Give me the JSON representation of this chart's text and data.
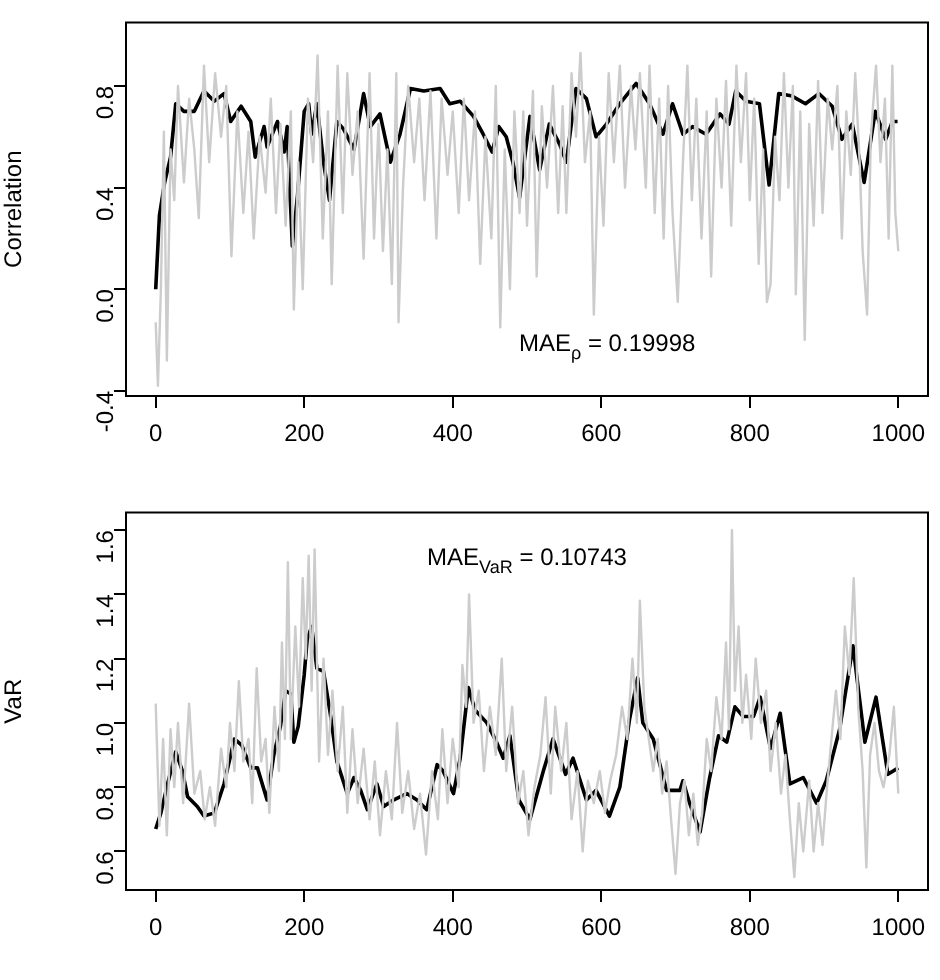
{
  "chart_data": [
    {
      "type": "line",
      "ylabel": "Correlation",
      "xlim": [
        -40,
        1040
      ],
      "ylim": [
        -0.42,
        1.05
      ],
      "xticks": [
        0,
        200,
        400,
        600,
        800,
        1000
      ],
      "yticks": [
        {
          "value": -0.4,
          "label": "-0.4"
        },
        {
          "value": 0,
          "label": "0.0"
        },
        0.4,
        0.8
      ],
      "grid": false,
      "legend": false,
      "marker": "none",
      "line_style": "solid",
      "annotations": [
        "MAE$_{ρ}$ = 0.19998"
      ],
      "series": [
        {
          "color": "#cccccc",
          "x": [
            0,
            3,
            7,
            11,
            15,
            20,
            25,
            30,
            38,
            45,
            52,
            58,
            65,
            72,
            80,
            88,
            95,
            102,
            110,
            118,
            125,
            132,
            140,
            148,
            155,
            162,
            168,
            175,
            182,
            186,
            192,
            198,
            205,
            212,
            218,
            225,
            232,
            237,
            245,
            252,
            258,
            265,
            272,
            280,
            288,
            294,
            300,
            306,
            312,
            318,
            324,
            327,
            333,
            340,
            348,
            355,
            362,
            370,
            378,
            385,
            393,
            400,
            408,
            415,
            422,
            430,
            437,
            444,
            452,
            458,
            464,
            470,
            477,
            483,
            490,
            495,
            500,
            508,
            513,
            520,
            527,
            535,
            542,
            548,
            553,
            560,
            566,
            572,
            578,
            585,
            590,
            597,
            603,
            610,
            617,
            625,
            632,
            640,
            646,
            652,
            660,
            665,
            672,
            678,
            684,
            690,
            696,
            703,
            710,
            716,
            722,
            728,
            735,
            742,
            748,
            755,
            762,
            768,
            775,
            782,
            788,
            795,
            800,
            806,
            812,
            818,
            823,
            828,
            834,
            840,
            846,
            852,
            858,
            862,
            868,
            874,
            880,
            886,
            892,
            898,
            905,
            911,
            918,
            924,
            930,
            936,
            942,
            948,
            952,
            958,
            963,
            970,
            976,
            982,
            987,
            992,
            996,
            1000
          ],
          "values": [
            -0.13,
            -0.38,
            0.0,
            0.62,
            -0.28,
            0.55,
            0.35,
            0.8,
            0.42,
            0.75,
            0.55,
            0.28,
            0.88,
            0.5,
            0.85,
            0.6,
            0.8,
            0.13,
            0.7,
            0.3,
            0.62,
            0.2,
            0.6,
            0.38,
            0.75,
            0.3,
            0.65,
            0.25,
            0.7,
            -0.08,
            0.5,
            0.0,
            0.75,
            0.5,
            0.92,
            0.2,
            0.7,
            0.02,
            0.88,
            0.3,
            0.85,
            0.45,
            0.7,
            0.12,
            0.85,
            0.2,
            0.65,
            0.15,
            0.55,
            0.02,
            0.85,
            -0.13,
            0.4,
            0.8,
            0.5,
            0.75,
            0.35,
            0.78,
            0.2,
            0.75,
            0.45,
            0.7,
            0.3,
            0.75,
            0.35,
            0.7,
            0.1,
            0.6,
            0.2,
            0.8,
            -0.15,
            0.55,
            0.0,
            0.7,
            0.3,
            0.7,
            0.25,
            0.78,
            0.05,
            0.72,
            0.4,
            0.8,
            0.3,
            0.72,
            0.3,
            0.85,
            0.6,
            0.93,
            0.5,
            0.7,
            -0.1,
            0.6,
            0.25,
            0.85,
            0.5,
            0.88,
            0.4,
            0.8,
            0.55,
            0.85,
            0.4,
            0.88,
            0.3,
            0.75,
            0.2,
            0.8,
            0.3,
            -0.05,
            0.5,
            0.88,
            0.35,
            0.75,
            0.2,
            0.7,
            0.05,
            0.75,
            0.4,
            0.82,
            0.25,
            0.88,
            0.5,
            0.85,
            0.35,
            0.75,
            0.1,
            0.55,
            -0.05,
            0.02,
            0.6,
            0.35,
            0.85,
            0.4,
            0.8,
            -0.02,
            0.7,
            -0.2,
            0.65,
            0.25,
            0.82,
            0.3,
            0.75,
            0.55,
            0.8,
            0.2,
            0.7,
            0.45,
            0.85,
            0.5,
            0.15,
            -0.1,
            0.6,
            0.88,
            0.5,
            0.75,
            0.2,
            0.88,
            0.3,
            0.15
          ]
        },
        {
          "color": "#000000",
          "x": [
            0,
            5,
            12,
            20,
            27,
            38,
            52,
            65,
            79,
            92,
            101,
            115,
            128,
            134,
            146,
            150,
            164,
            173,
            177,
            184,
            191,
            200,
            206,
            210,
            217,
            226,
            234,
            244,
            253,
            267,
            280,
            289,
            302,
            316,
            329,
            343,
            361,
            383,
            396,
            410,
            428,
            441,
            453,
            462,
            472,
            481,
            490,
            504,
            517,
            530,
            544,
            553,
            566,
            580,
            593,
            607,
            625,
            647,
            665,
            683,
            696,
            710,
            723,
            741,
            760,
            772,
            781,
            795,
            813,
            826,
            839,
            857,
            875,
            893,
            911,
            924,
            938,
            954,
            969,
            983,
            992,
            999
          ],
          "values": [
            0.0,
            0.29,
            0.42,
            0.52,
            0.73,
            0.7,
            0.7,
            0.78,
            0.74,
            0.77,
            0.66,
            0.72,
            0.66,
            0.52,
            0.64,
            0.56,
            0.66,
            0.54,
            0.64,
            0.17,
            0.37,
            0.7,
            0.73,
            0.61,
            0.73,
            0.5,
            0.35,
            0.66,
            0.63,
            0.55,
            0.77,
            0.64,
            0.69,
            0.5,
            0.61,
            0.79,
            0.78,
            0.79,
            0.73,
            0.74,
            0.68,
            0.61,
            0.54,
            0.64,
            0.6,
            0.5,
            0.36,
            0.68,
            0.47,
            0.65,
            0.57,
            0.5,
            0.79,
            0.75,
            0.6,
            0.65,
            0.73,
            0.81,
            0.73,
            0.61,
            0.73,
            0.61,
            0.64,
            0.61,
            0.69,
            0.65,
            0.78,
            0.74,
            0.73,
            0.41,
            0.77,
            0.76,
            0.73,
            0.77,
            0.72,
            0.59,
            0.65,
            0.42,
            0.7,
            0.59,
            0.66,
            0.66
          ]
        }
      ]
    },
    {
      "type": "line",
      "ylabel": "VaR",
      "xlim": [
        -40,
        1040
      ],
      "ylim": [
        0.48,
        1.655
      ],
      "xticks": [
        0,
        200,
        400,
        600,
        800,
        1000
      ],
      "yticks": [
        0.6,
        0.8,
        {
          "value": 1,
          "label": "1.0"
        },
        1.2,
        1.4,
        1.6
      ],
      "grid": false,
      "legend": false,
      "marker": "none",
      "line_style": "solid",
      "annotations": [
        "MAE$_{VaR}$ = 0.10743"
      ],
      "series": [
        {
          "color": "#cccccc",
          "x": [
            0,
            5,
            10,
            15,
            20,
            25,
            30,
            37,
            45,
            52,
            60,
            66,
            73,
            80,
            88,
            95,
            100,
            106,
            112,
            118,
            125,
            130,
            136,
            142,
            148,
            153,
            160,
            166,
            170,
            174,
            178,
            182,
            188,
            193,
            198,
            202,
            206,
            210,
            214,
            220,
            226,
            232,
            238,
            245,
            252,
            258,
            265,
            272,
            280,
            288,
            295,
            302,
            310,
            318,
            325,
            332,
            340,
            348,
            356,
            364,
            372,
            380,
            386,
            393,
            400,
            408,
            413,
            418,
            422,
            428,
            435,
            442,
            450,
            458,
            466,
            472,
            480,
            488,
            495,
            502,
            510,
            518,
            525,
            532,
            538,
            546,
            553,
            560,
            568,
            575,
            582,
            590,
            598,
            605,
            612,
            620,
            628,
            635,
            642,
            648,
            652,
            658,
            664,
            670,
            676,
            682,
            688,
            694,
            700,
            706,
            712,
            718,
            724,
            730,
            736,
            742,
            748,
            755,
            762,
            768,
            772,
            776,
            780,
            785,
            790,
            795,
            802,
            808,
            815,
            822,
            828,
            835,
            842,
            848,
            854,
            860,
            866,
            872,
            880,
            886,
            892,
            898,
            904,
            910,
            916,
            922,
            928,
            934,
            940,
            946,
            952,
            957,
            962,
            968,
            974,
            980,
            988,
            994,
            1000
          ],
          "values": [
            1.06,
            0.68,
            0.95,
            0.65,
            0.98,
            0.8,
            1.0,
            0.75,
            1.06,
            0.78,
            0.85,
            0.7,
            0.8,
            0.68,
            0.92,
            0.8,
            1.0,
            0.85,
            1.13,
            0.88,
            0.95,
            0.75,
            1.17,
            0.88,
            0.95,
            0.72,
            1.05,
            0.85,
            1.25,
            0.95,
            1.5,
            0.95,
            1.3,
            1.05,
            1.45,
            1.2,
            1.52,
            1.1,
            1.54,
            0.88,
            1.2,
            0.9,
            1.1,
            0.85,
            1.05,
            0.72,
            0.98,
            0.75,
            0.92,
            0.7,
            0.88,
            0.65,
            0.85,
            0.7,
            1.0,
            0.72,
            0.85,
            0.67,
            0.78,
            0.59,
            0.85,
            0.7,
            0.98,
            0.75,
            0.95,
            0.8,
            1.18,
            1.05,
            1.4,
            1.0,
            1.1,
            0.85,
            1.05,
            0.9,
            1.2,
            0.85,
            1.05,
            0.75,
            0.85,
            0.65,
            0.8,
            0.9,
            1.08,
            0.78,
            1.05,
            0.85,
            1.0,
            0.7,
            0.85,
            0.6,
            0.82,
            0.75,
            0.85,
            0.72,
            0.82,
            0.9,
            1.05,
            0.95,
            1.2,
            1.0,
            1.38,
            1.05,
            0.95,
            0.85,
            0.95,
            0.78,
            0.88,
            0.7,
            0.53,
            0.75,
            0.82,
            0.65,
            0.78,
            0.62,
            0.72,
            0.95,
            0.85,
            1.08,
            0.95,
            1.25,
            0.98,
            1.6,
            1.1,
            1.3,
            1.0,
            1.15,
            0.95,
            1.2,
            1.0,
            1.1,
            0.85,
            1.0,
            0.78,
            0.9,
            0.7,
            0.52,
            0.75,
            0.6,
            0.82,
            0.6,
            0.75,
            0.62,
            0.8,
            0.95,
            1.1,
            0.95,
            1.3,
            1.15,
            1.45,
            1.05,
            0.85,
            0.55,
            0.9,
            1.0,
            0.85,
            0.8,
            0.9,
            1.05,
            0.78
          ]
        },
        {
          "color": "#000000",
          "x": [
            0,
            7,
            16,
            27,
            36,
            43,
            56,
            65,
            79,
            92,
            106,
            116,
            128,
            137,
            150,
            159,
            168,
            175,
            182,
            186,
            192,
            200,
            204,
            210,
            217,
            226,
            235,
            244,
            258,
            267,
            276,
            285,
            298,
            307,
            320,
            338,
            352,
            365,
            379,
            387,
            401,
            410,
            421,
            430,
            446,
            459,
            468,
            477,
            489,
            504,
            522,
            535,
            552,
            562,
            580,
            593,
            611,
            625,
            638,
            649,
            656,
            670,
            688,
            706,
            710,
            719,
            733,
            746,
            758,
            769,
            780,
            791,
            805,
            814,
            828,
            841,
            854,
            872,
            890,
            903,
            921,
            939,
            955,
            970,
            986,
            1000
          ],
          "values": [
            0.67,
            0.72,
            0.81,
            0.91,
            0.85,
            0.77,
            0.74,
            0.71,
            0.72,
            0.81,
            0.95,
            0.93,
            0.86,
            0.86,
            0.76,
            0.9,
            0.99,
            1.1,
            1.09,
            0.94,
            0.99,
            1.15,
            1.26,
            1.3,
            1.17,
            1.16,
            1.03,
            0.88,
            0.78,
            0.83,
            0.79,
            0.73,
            0.81,
            0.74,
            0.76,
            0.78,
            0.76,
            0.73,
            0.87,
            0.85,
            0.78,
            0.89,
            1.11,
            1.04,
            1.0,
            0.94,
            0.89,
            0.96,
            0.76,
            0.7,
            0.85,
            0.95,
            0.84,
            0.89,
            0.76,
            0.79,
            0.71,
            0.8,
            1.01,
            1.14,
            1.0,
            0.95,
            0.79,
            0.79,
            0.82,
            0.75,
            0.66,
            0.83,
            0.96,
            0.94,
            1.05,
            1.02,
            1.02,
            1.08,
            0.92,
            1.03,
            0.81,
            0.83,
            0.75,
            0.82,
            0.98,
            1.24,
            0.94,
            1.08,
            0.84,
            0.86
          ]
        }
      ]
    }
  ]
}
